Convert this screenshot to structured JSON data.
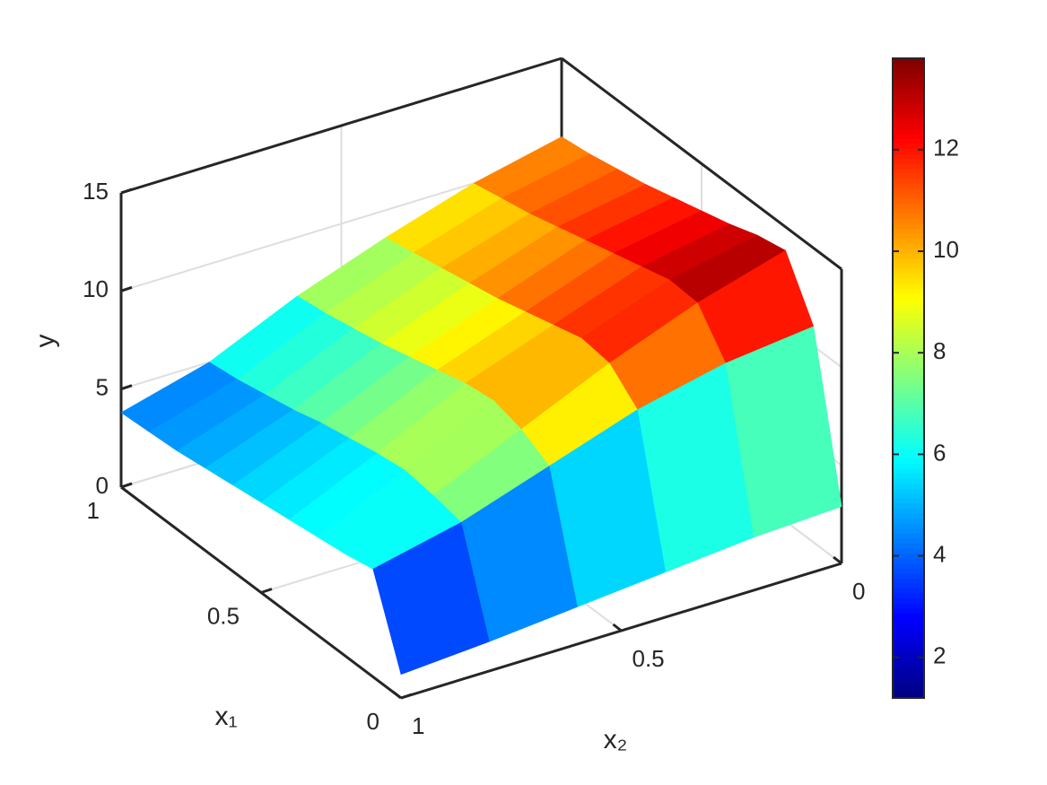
{
  "chart_data": {
    "type": "surface",
    "xlabel": "x₁",
    "ylabel": "x₂",
    "zlabel": "y",
    "x1": [
      0,
      0.1,
      0.2,
      0.3,
      0.4,
      0.5,
      0.6,
      0.7,
      0.8,
      0.9,
      1
    ],
    "x2": [
      0,
      0.2,
      0.4,
      0.6,
      0.8,
      1
    ],
    "z": [
      [
        2.9,
        2.7,
        2.3,
        1.9,
        1.5,
        1.2
      ],
      [
        11.0,
        10.5,
        9.5,
        8.0,
        6.5,
        5.5
      ],
      [
        13.8,
        12.5,
        10.8,
        8.8,
        6.8,
        5.2
      ],
      [
        13.5,
        12.6,
        11.0,
        9.2,
        7.0,
        5.0
      ],
      [
        13.0,
        12.2,
        10.6,
        9.0,
        6.8,
        4.8
      ],
      [
        12.6,
        11.8,
        10.2,
        8.6,
        6.5,
        4.6
      ],
      [
        12.2,
        11.4,
        9.8,
        8.2,
        6.2,
        4.4
      ],
      [
        11.8,
        11.0,
        9.5,
        7.8,
        5.8,
        4.2
      ],
      [
        11.5,
        10.6,
        9.2,
        7.5,
        5.5,
        4.0
      ],
      [
        11.2,
        10.3,
        8.9,
        7.2,
        5.2,
        3.9
      ],
      [
        11.0,
        10.0,
        8.6,
        7.0,
        5.0,
        3.8
      ]
    ],
    "x1lim": [
      0,
      1
    ],
    "x1ticks": [
      0,
      0.5,
      1
    ],
    "x2lim": [
      0,
      1
    ],
    "x2ticks": [
      0,
      0.5,
      1
    ],
    "zlim": [
      0,
      15
    ],
    "zticks": [
      0,
      5,
      10,
      15
    ],
    "colormap": "jet",
    "clim": [
      1.2,
      13.8
    ],
    "cticks": [
      2,
      4,
      6,
      8,
      10,
      12
    ],
    "grid": true
  }
}
